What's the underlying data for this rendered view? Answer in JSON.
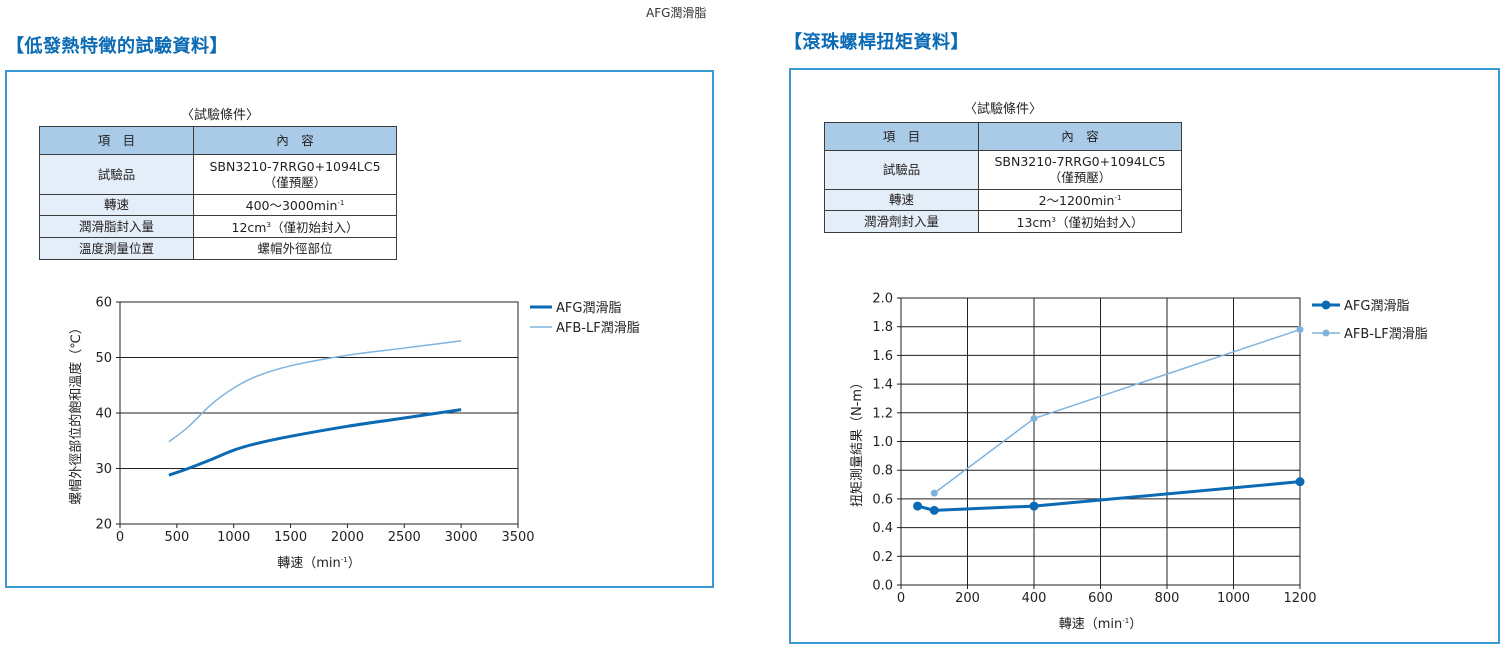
{
  "header_tag": "AFG潤滑脂",
  "left": {
    "title": "【低發熱特徵的試驗資料】",
    "conditions_caption": "〈試驗條件〉",
    "table_headers": [
      "項　目",
      "內　容"
    ],
    "rows": [
      {
        "k": "試驗品",
        "v1": "SBN3210-7RRG0+1094LC5",
        "v2": "（僅預壓）"
      },
      {
        "k": "轉速",
        "v1": "400～3000min",
        "sup": "-1"
      },
      {
        "k": "潤滑脂封入量",
        "v1": "12cm",
        "sup": "3",
        "v_after": "（僅初始封入）"
      },
      {
        "k": "溫度測量位置",
        "v1": "螺帽外徑部位"
      }
    ]
  },
  "right": {
    "title": "【滾珠螺桿扭矩資料】",
    "conditions_caption": "〈試驗條件〉",
    "table_headers": [
      "項　目",
      "內　容"
    ],
    "rows": [
      {
        "k": "試驗品",
        "v1": "SBN3210-7RRG0+1094LC5",
        "v2": "（僅預壓）"
      },
      {
        "k": "轉速",
        "v1": "2～1200min",
        "sup": "-1"
      },
      {
        "k": "潤滑劑封入量",
        "v1": "13cm",
        "sup": "3",
        "v_after": "（僅初始封入）"
      }
    ]
  },
  "chart_data": [
    {
      "type": "line",
      "xlabel": "轉速（min",
      "xlabel_sup": "-1",
      "xlabel_end": "）",
      "ylabel": "螺帽外徑部位的飽和溫度（℃）",
      "xlim": [
        0,
        3500
      ],
      "ylim": [
        20,
        60
      ],
      "xticks": [
        0,
        500,
        1000,
        1500,
        2000,
        2500,
        3000,
        3500
      ],
      "yticks": [
        20,
        30,
        40,
        50,
        60
      ],
      "grid": "horizontal",
      "legend_position": "top-right",
      "series": [
        {
          "name": "AFG潤滑脂",
          "color": "#0a6ab4",
          "width": 3,
          "x": [
            430,
            600,
            800,
            1000,
            1200,
            1500,
            2000,
            2500,
            3000
          ],
          "y": [
            28.8,
            30,
            31.6,
            33.3,
            34.5,
            35.8,
            37.6,
            39.1,
            40.6
          ]
        },
        {
          "name": "AFB-LF潤滑脂",
          "color": "#7fb3dd",
          "width": 1.5,
          "x": [
            430,
            600,
            800,
            1000,
            1200,
            1500,
            2000,
            2500,
            3000
          ],
          "y": [
            34.8,
            37.5,
            41.5,
            44.5,
            46.6,
            48.5,
            50.4,
            51.7,
            53
          ]
        }
      ]
    },
    {
      "type": "line",
      "xlabel": "轉速（min",
      "xlabel_sup": "-1",
      "xlabel_end": "）",
      "ylabel": "扭矩測量結果（N-m）",
      "xlim": [
        0,
        1200
      ],
      "ylim": [
        0,
        2.0
      ],
      "xticks": [
        0,
        200,
        400,
        600,
        800,
        1000,
        1200
      ],
      "yticks": [
        0.0,
        0.2,
        0.4,
        0.6,
        0.8,
        1.0,
        1.2,
        1.4,
        1.6,
        1.8,
        2.0
      ],
      "ytick_labels": [
        "0.0",
        "0.2",
        "0.4",
        "0.6",
        "0.8",
        "1.0",
        "1.2",
        "1.4",
        "1.6",
        "1.8",
        "2.0"
      ],
      "grid": "both",
      "legend_position": "top-right",
      "series": [
        {
          "name": "AFG潤滑脂",
          "color": "#0a6ab4",
          "width": 3,
          "marker_r": 4.5,
          "x": [
            50,
            100,
            400,
            1200
          ],
          "y": [
            0.55,
            0.52,
            0.55,
            0.72
          ]
        },
        {
          "name": "AFB-LF潤滑脂",
          "color": "#7fb3dd",
          "width": 1.5,
          "marker_r": 3.5,
          "x": [
            100,
            400,
            1200
          ],
          "y": [
            0.64,
            1.16,
            1.78
          ]
        }
      ]
    }
  ]
}
